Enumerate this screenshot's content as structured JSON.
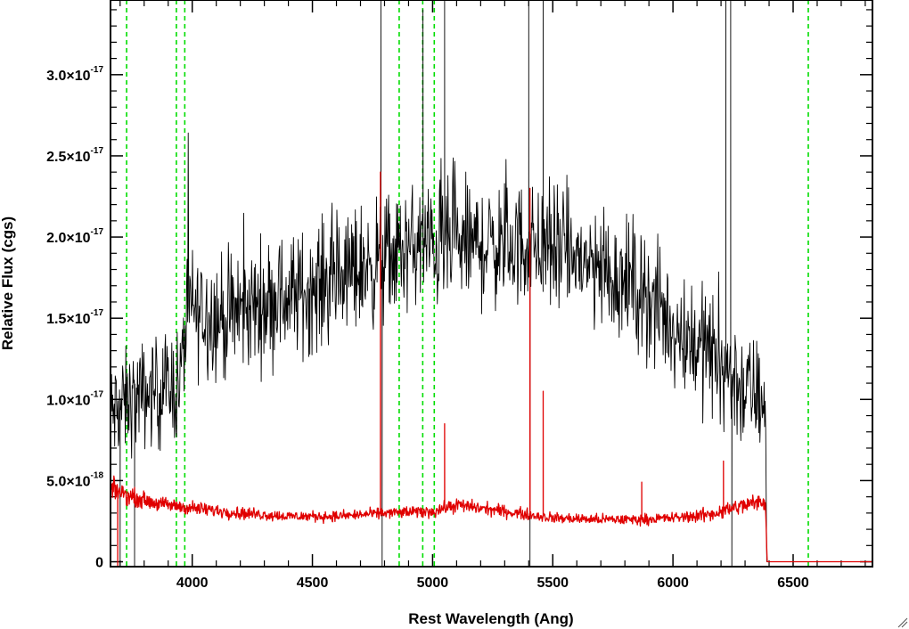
{
  "chart_data": {
    "type": "line",
    "xlabel": "Rest Wavelength (Ang)",
    "ylabel": "Relative Flux (cgs)",
    "xlim": [
      3660,
      6830
    ],
    "ylim": [
      -3e-19,
      3.46e-17
    ],
    "x_ticks": [
      {
        "value": 4000,
        "label": "4000"
      },
      {
        "value": 4500,
        "label": "4500"
      },
      {
        "value": 5000,
        "label": "5000"
      },
      {
        "value": 5500,
        "label": "5500"
      },
      {
        "value": 6000,
        "label": "6000"
      },
      {
        "value": 6500,
        "label": "6500"
      }
    ],
    "y_ticks": [
      {
        "value": 0,
        "mantissa": "0",
        "exponent": ""
      },
      {
        "value": 5e-18,
        "mantissa": "5.0×10",
        "exponent": "-18"
      },
      {
        "value": 1e-17,
        "mantissa": "1.0×10",
        "exponent": "-17"
      },
      {
        "value": 1.5e-17,
        "mantissa": "1.5×10",
        "exponent": "-17"
      },
      {
        "value": 2e-17,
        "mantissa": "2.0×10",
        "exponent": "-17"
      },
      {
        "value": 2.5e-17,
        "mantissa": "2.5×10",
        "exponent": "-17"
      },
      {
        "value": 3e-17,
        "mantissa": "3.0×10",
        "exponent": "-17"
      }
    ],
    "series": [
      {
        "color": "#000000",
        "style": "noisy-spectrum",
        "envelope": {
          "x": [
            3660,
            3750,
            3850,
            3950,
            3980,
            4150,
            4300,
            4450,
            4600,
            4780,
            4950,
            5100,
            5250,
            5400,
            5550,
            5700,
            5850,
            6000,
            6150,
            6300,
            6385,
            6390,
            6830
          ],
          "y": [
            9e-18,
            1e-17,
            1.05e-17,
            1.1e-17,
            1.55e-17,
            1.5e-17,
            1.6e-17,
            1.65e-17,
            1.75e-17,
            1.85e-17,
            1.95e-17,
            1.95e-17,
            1.95e-17,
            1.95e-17,
            1.9e-17,
            1.8e-17,
            1.7e-17,
            1.45e-17,
            1.3e-17,
            1.05e-17,
            1e-17,
            0,
            0
          ],
          "noise": [
            3e-18,
            3e-18,
            3e-18,
            3.2e-18,
            3.5e-18,
            3.5e-18,
            3.5e-18,
            3.5e-18,
            3.5e-18,
            3.5e-18,
            3.5e-18,
            3.5e-18,
            3.5e-18,
            3.5e-18,
            3.5e-18,
            3.5e-18,
            3.5e-18,
            3.5e-18,
            3.5e-18,
            3.5e-18,
            3e-18,
            0,
            0
          ]
        },
        "spikes": [
          {
            "x": 4785,
            "y": 3.46e-17
          },
          {
            "x": 4790,
            "y": -3e-19
          },
          {
            "x": 4960,
            "y": 3.4e-17
          },
          {
            "x": 5050,
            "y": 3.46e-17
          },
          {
            "x": 5400,
            "y": 3.46e-17
          },
          {
            "x": 5405,
            "y": -3e-19
          },
          {
            "x": 5460,
            "y": 3.46e-17
          },
          {
            "x": 6220,
            "y": 3.46e-17
          },
          {
            "x": 6240,
            "y": 3.46e-17
          },
          {
            "x": 6245,
            "y": -3e-19
          },
          {
            "x": 3700,
            "y": -3e-19
          },
          {
            "x": 3760,
            "y": -3e-19
          }
        ]
      },
      {
        "color": "#e00000",
        "style": "error-spectrum",
        "envelope": {
          "x": [
            3660,
            3750,
            3850,
            4000,
            4200,
            4400,
            4600,
            4800,
            5000,
            5100,
            5300,
            5500,
            5700,
            5850,
            6000,
            6150,
            6300,
            6385,
            6392,
            6830
          ],
          "y": [
            4.5e-18,
            4e-18,
            3.6e-18,
            3.3e-18,
            3e-18,
            2.8e-18,
            2.8e-18,
            3e-18,
            3.1e-18,
            3.5e-18,
            3.1e-18,
            2.7e-18,
            2.6e-18,
            2.6e-18,
            2.7e-18,
            2.9e-18,
            3.5e-18,
            3.7e-18,
            0,
            0
          ],
          "noise": [
            6e-19,
            5e-19,
            4e-19,
            4e-19,
            3.5e-19,
            3e-19,
            3e-19,
            3e-19,
            3.5e-19,
            4e-19,
            3.5e-19,
            3e-19,
            3e-19,
            3e-19,
            3e-19,
            4e-19,
            5e-19,
            5e-19,
            0,
            0
          ]
        },
        "spikes": [
          {
            "x": 3690,
            "y": -3e-19
          },
          {
            "x": 4783,
            "y": 2.4e-17
          },
          {
            "x": 5050,
            "y": 8.5e-18
          },
          {
            "x": 5405,
            "y": 2.3e-17
          },
          {
            "x": 5460,
            "y": 1.05e-17
          },
          {
            "x": 5870,
            "y": 4.9e-18
          },
          {
            "x": 6210,
            "y": 6.2e-18
          }
        ]
      }
    ],
    "vlines": {
      "color": "#00dd00",
      "style": "dashed",
      "x": [
        3727,
        3934,
        3969,
        4861,
        4959,
        5007,
        6563
      ]
    }
  }
}
